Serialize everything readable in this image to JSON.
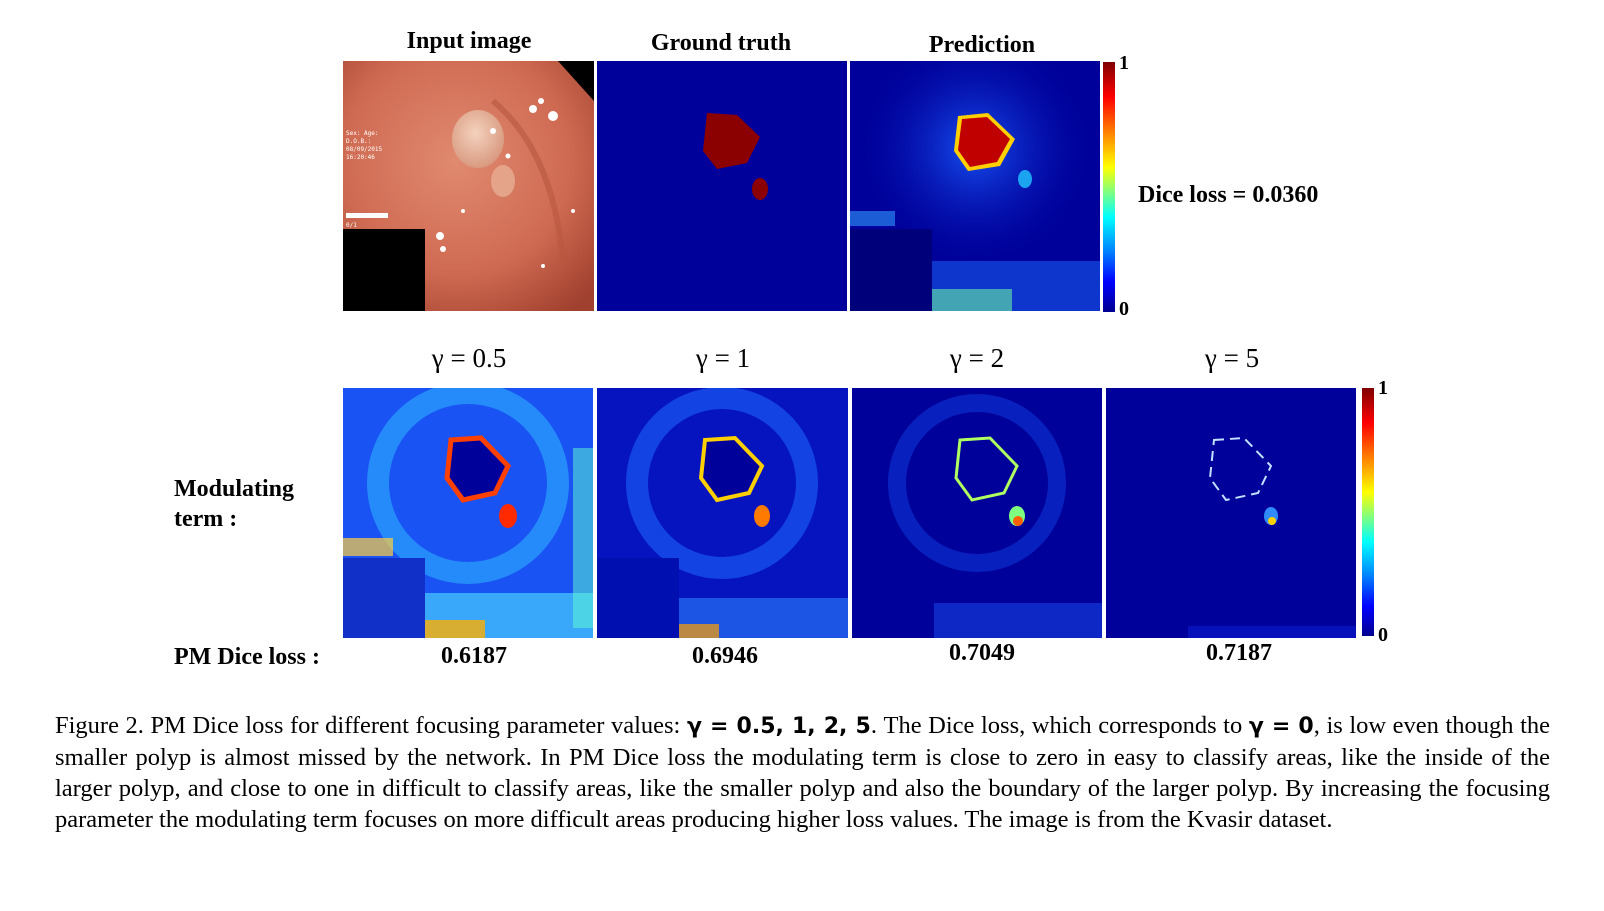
{
  "top_row": {
    "headers": [
      "Input image",
      "Ground truth",
      "Prediction"
    ],
    "dice_loss_label": "Dice loss = 0.0360",
    "colorbar": {
      "max": "1",
      "min": "0"
    }
  },
  "bottom_row": {
    "gamma_labels": [
      "γ = 0.5",
      "γ = 1",
      "γ = 2",
      "γ = 5"
    ],
    "row_label_line1": "Modulating",
    "row_label_line2": "term :",
    "pm_label": "PM Dice loss :",
    "pm_values": [
      "0.6187",
      "0.6946",
      "0.7049",
      "0.7187"
    ],
    "colorbar": {
      "max": "1",
      "min": "0"
    }
  },
  "caption": {
    "prefix": "Figure 2. PM Dice loss for different focusing parameter values: ",
    "gammas": "γ  = 0.5, 1, 2, 5",
    "middle": ". The Dice loss, which corresponds to ",
    "gamma0": "γ  = 0",
    "suffix": ", is low even though the smaller polyp is almost missed by the network. In PM Dice loss the modulating term is close to zero in easy to classify areas, like the inside of the larger polyp, and close to one in difficult to classify areas, like the smaller polyp and also the boundary of the larger polyp. By increasing the focusing parameter the modulating term focuses on more difficult areas producing higher loss values. The image is from the Kvasir dataset."
  },
  "colors": {
    "deep_blue": "#00009a",
    "polyp_red": "#8b0000",
    "tissue": "#d9735c"
  }
}
